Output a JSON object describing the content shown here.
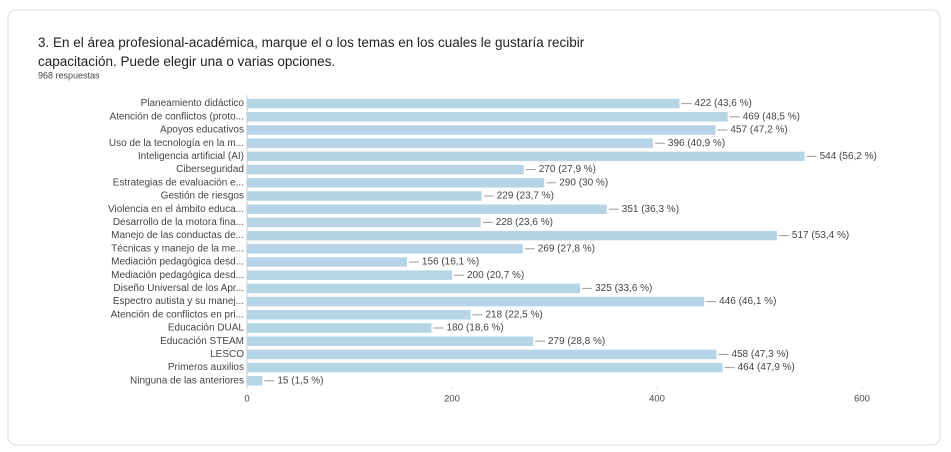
{
  "chart_data": {
    "type": "hbar",
    "title": "3. En el  área profesional-académica, marque el o los temas en los cuales le gustaría recibir capacitación. Puede elegir una o varias opciones.",
    "subtitle": "968 respuestas",
    "categories": [
      "Planeamiento didáctico",
      "Atención de conflictos (proto...",
      "Apoyos educativos",
      "Uso de la tecnología en la m...",
      "Inteligencia artificial (AI)",
      "Ciberseguridad",
      "Estrategias de evaluación e...",
      "Gestión de riesgos",
      "Violencia en el ámbito educa...",
      "Desarrollo de la motora fina...",
      "Manejo de las conductas de...",
      "Técnicas y manejo de la me...",
      "Mediación pedagógica desd...",
      "Mediación pedagógica desd...",
      "Diseño Universal de los Apr...",
      "Espectro autista y su manej...",
      "Atención de conflictos en pri...",
      "Educación DUAL",
      "Educación STEAM",
      "LESCO",
      "Primeros auxilios",
      "Ninguna de las anteriores"
    ],
    "values": [
      422,
      469,
      457,
      396,
      544,
      270,
      290,
      229,
      351,
      228,
      517,
      269,
      156,
      200,
      325,
      446,
      218,
      180,
      279,
      458,
      464,
      15
    ],
    "value_labels": [
      "422 (43,6 %)",
      "469 (48,5 %)",
      "457 (47,2 %)",
      "396 (40,9 %)",
      "544 (56,2 %)",
      "270 (27,9 %)",
      "290 (30 %)",
      "229 (23,7 %)",
      "351 (36,3 %)",
      "228 (23,6 %)",
      "517 (53,4 %)",
      "269 (27,8 %)",
      "156 (16,1 %)",
      "200 (20,7 %)",
      "325 (33,6 %)",
      "446 (46,1 %)",
      "218 (22,5 %)",
      "180 (18,6 %)",
      "279 (28,8 %)",
      "458 (47,3 %)",
      "464 (47,9 %)",
      "15 (1,5 %)"
    ],
    "color": "#b5d4e6",
    "xlim": [
      0,
      600
    ],
    "xticks": [
      0,
      200,
      400,
      600
    ]
  }
}
